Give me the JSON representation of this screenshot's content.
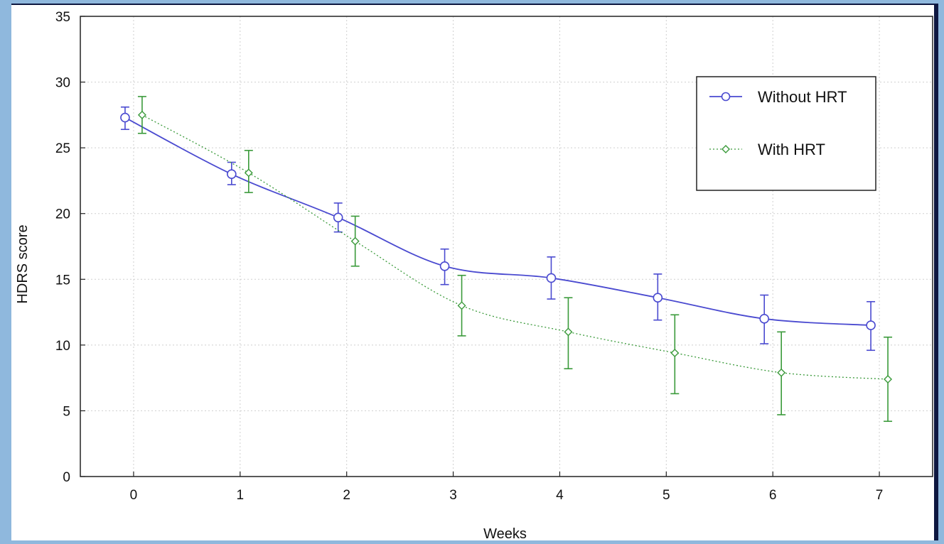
{
  "chart_data": {
    "type": "line",
    "title": "",
    "xlabel": "Weeks",
    "ylabel": "HDRS score",
    "x": [
      0,
      1,
      2,
      3,
      4,
      5,
      6,
      7
    ],
    "x_ticks": [
      "0",
      "1",
      "2",
      "3",
      "4",
      "5",
      "6",
      "7"
    ],
    "y_ticks": [
      "0",
      "5",
      "10",
      "15",
      "20",
      "25",
      "30",
      "35"
    ],
    "ylim": [
      0,
      35
    ],
    "xlim": [
      -0.5,
      7.5
    ],
    "grid": true,
    "legend_position": "top-right",
    "series": [
      {
        "name": "Without HRT",
        "color": "#4a4ad0",
        "line_style": "solid",
        "marker": "circle",
        "values": [
          27.3,
          23.0,
          19.7,
          16.0,
          15.1,
          13.6,
          12.0,
          11.5
        ],
        "err_low": [
          26.4,
          22.2,
          18.6,
          14.6,
          13.5,
          11.9,
          10.1,
          9.6
        ],
        "err_high": [
          28.1,
          23.9,
          20.8,
          17.3,
          16.7,
          15.4,
          13.8,
          13.3
        ]
      },
      {
        "name": "With HRT",
        "color": "#3a9a3a",
        "line_style": "dotted",
        "marker": "diamond",
        "values": [
          27.5,
          23.1,
          17.9,
          13.0,
          11.0,
          9.4,
          7.9,
          7.4
        ],
        "err_low": [
          26.1,
          21.6,
          16.0,
          10.7,
          8.2,
          6.3,
          4.7,
          4.2
        ],
        "err_high": [
          28.9,
          24.8,
          19.8,
          15.3,
          13.6,
          12.3,
          11.0,
          10.6
        ]
      }
    ]
  }
}
